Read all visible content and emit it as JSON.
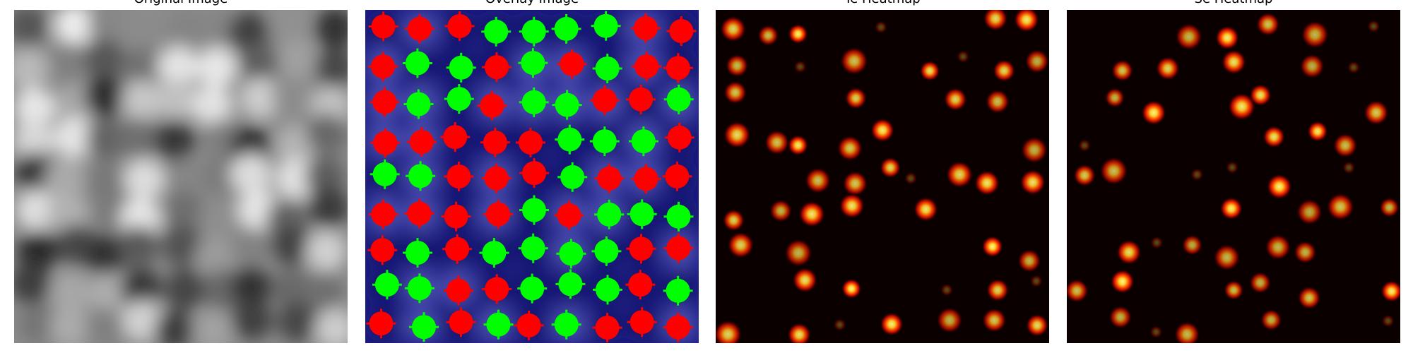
{
  "panels": [
    {
      "title": "Original Image"
    },
    {
      "title": "Overlay Image"
    },
    {
      "title": "Te Heatmap"
    },
    {
      "title": "Se Heatmap"
    }
  ],
  "colors": {
    "overlay_background": "#1e1f86",
    "te_marker": "#ff0000",
    "se_marker": "#00ff00",
    "heatmap_background": "#0a0000",
    "heatmap_peak": "#fff39a"
  },
  "image": {
    "grid_cols": 9,
    "grid_rows": 9,
    "overlay_labels": [
      [
        "te",
        "te",
        "te",
        "se",
        "se",
        "se",
        "se",
        "te",
        "te"
      ],
      [
        "te",
        "se",
        "se",
        "te",
        "se",
        "te",
        "se",
        "te",
        "te"
      ],
      [
        "te",
        "se",
        "se",
        "te",
        "se",
        "se",
        "te",
        "te",
        "se"
      ],
      [
        "te",
        "te",
        "te",
        "te",
        "te",
        "se",
        "se",
        "se",
        "te"
      ],
      [
        "se",
        "se",
        "te",
        "te",
        "te",
        "se",
        "te",
        "te",
        "te"
      ],
      [
        "te",
        "te",
        "te",
        "te",
        "se",
        "te",
        "se",
        "se",
        "se"
      ],
      [
        "te",
        "se",
        "te",
        "se",
        "se",
        "se",
        "se",
        "te",
        "te"
      ],
      [
        "se",
        "se",
        "te",
        "te",
        "se",
        "se",
        "se",
        "te",
        "se"
      ],
      [
        "te",
        "se",
        "te",
        "se",
        "te",
        "se",
        "te",
        "te",
        "te"
      ]
    ]
  }
}
